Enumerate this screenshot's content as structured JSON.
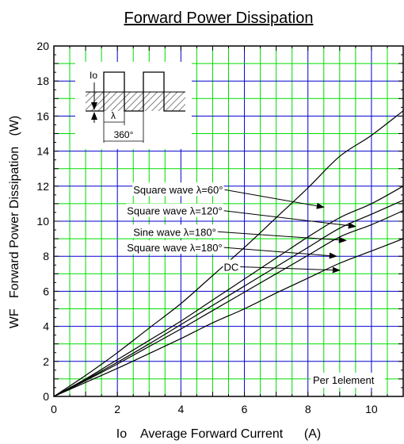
{
  "chart_data": {
    "type": "line",
    "title": "Forward Power Dissipation",
    "xlabel": "Io    Average Forward Current      (A)",
    "ylabel": "WF   Forward Power Dissipation   (W)",
    "xlim": [
      0,
      11
    ],
    "ylim": [
      0,
      20
    ],
    "x_ticks": [
      "0",
      "2",
      "4",
      "6",
      "8",
      "10"
    ],
    "y_ticks": [
      "0",
      "2",
      "4",
      "6",
      "8",
      "10",
      "12",
      "14",
      "16",
      "18",
      "20"
    ],
    "grid": true,
    "grid_color_minor": "#00dd00",
    "grid_color_major": "#0000cc",
    "curve_color": "#000000",
    "note": "Per 1element",
    "series": [
      {
        "name": "Square wave λ=60°",
        "x": [
          0,
          1,
          2,
          3,
          4,
          5,
          6,
          7,
          8,
          9,
          10,
          11
        ],
        "y": [
          0,
          1.2,
          2.5,
          3.9,
          5.3,
          6.9,
          8.5,
          10.2,
          11.9,
          13.7,
          14.9,
          16.3
        ]
      },
      {
        "name": "Square wave λ=120°",
        "x": [
          0,
          1,
          2,
          3,
          4,
          5,
          6,
          7,
          8,
          9,
          10,
          11
        ],
        "y": [
          0,
          1.0,
          2.1,
          3.2,
          4.3,
          5.5,
          6.7,
          7.9,
          9.1,
          10.2,
          11.0,
          12.0
        ]
      },
      {
        "name": "Sine wave λ=180°",
        "x": [
          0,
          1,
          2,
          3,
          4,
          5,
          6,
          7,
          8,
          9,
          10,
          11
        ],
        "y": [
          0,
          0.95,
          1.95,
          3.0,
          4.1,
          5.2,
          6.3,
          7.4,
          8.5,
          9.6,
          10.4,
          11.2
        ]
      },
      {
        "name": "Square wave λ=180°",
        "x": [
          0,
          1,
          2,
          3,
          4,
          5,
          6,
          7,
          8,
          9,
          10,
          11
        ],
        "y": [
          0,
          0.9,
          1.85,
          2.85,
          3.85,
          4.9,
          5.95,
          7.0,
          8.05,
          9.1,
          9.8,
          10.6
        ]
      },
      {
        "name": "DC",
        "x": [
          0,
          1,
          2,
          3,
          4,
          5,
          6,
          7,
          8,
          9,
          10,
          11
        ],
        "y": [
          0,
          0.8,
          1.6,
          2.45,
          3.3,
          4.2,
          5.0,
          5.9,
          6.75,
          7.6,
          8.3,
          9.0
        ]
      }
    ],
    "annotations": [
      {
        "text": "Square wave λ=60°",
        "series": 0,
        "label_at": [
          2.5,
          11.8
        ],
        "arrow_to": [
          8.5,
          10.8
        ]
      },
      {
        "text": "Square wave λ=120°",
        "series": 1,
        "label_at": [
          2.3,
          10.6
        ],
        "arrow_to": [
          9.5,
          9.7
        ]
      },
      {
        "text": "Sine wave λ=180°",
        "series": 2,
        "label_at": [
          2.5,
          9.4
        ],
        "arrow_to": [
          9.2,
          8.9
        ]
      },
      {
        "text": "Square wave λ=180°",
        "series": 3,
        "label_at": [
          2.3,
          8.5
        ],
        "arrow_to": [
          8.9,
          8.0
        ]
      },
      {
        "text": "DC",
        "series": 4,
        "label_at": [
          5.35,
          7.4
        ],
        "arrow_to": [
          9.0,
          7.2
        ]
      }
    ],
    "inset": {
      "label_io": "Io",
      "label_lambda": "λ",
      "label_period": "360°"
    }
  }
}
